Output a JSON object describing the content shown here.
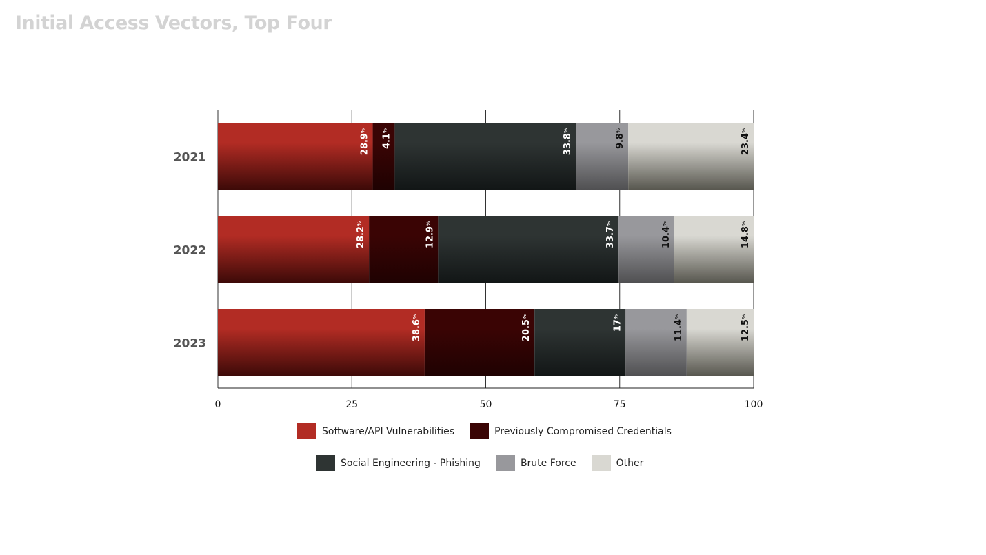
{
  "chart_data": {
    "type": "bar",
    "orientation": "horizontal",
    "stacked": true,
    "title": "Initial Access Vectors, Top Four",
    "categories": [
      "2021",
      "2022",
      "2023"
    ],
    "xlim": [
      0,
      100
    ],
    "x_ticks": [
      0,
      25,
      50,
      75,
      100
    ],
    "grid": true,
    "legend_position": "bottom",
    "percent_suffix": "%",
    "series": [
      {
        "name": "Software/API Vulnerabilities",
        "values": [
          28.9,
          28.2,
          38.6
        ],
        "labels": [
          "28.9",
          "28.2",
          "38.6"
        ],
        "color": "#b22c24"
      },
      {
        "name": "Previously Compromised Credentials",
        "values": [
          4.1,
          12.9,
          20.5
        ],
        "labels": [
          "4.1",
          "12.9",
          "20.5"
        ],
        "color": "#3a0404"
      },
      {
        "name": "Social Engineering - Phishing",
        "values": [
          33.8,
          33.7,
          17
        ],
        "labels": [
          "33.8",
          "33.7",
          "17"
        ],
        "color": "#2e3433"
      },
      {
        "name": "Brute Force",
        "values": [
          9.8,
          10.4,
          11.4
        ],
        "labels": [
          "9.8",
          "10.4",
          "11.4"
        ],
        "color": "#98989c"
      },
      {
        "name": "Other",
        "values": [
          23.4,
          14.8,
          12.5
        ],
        "labels": [
          "23.4",
          "14.8",
          "12.5"
        ],
        "color": "#d9d8d2"
      }
    ]
  }
}
